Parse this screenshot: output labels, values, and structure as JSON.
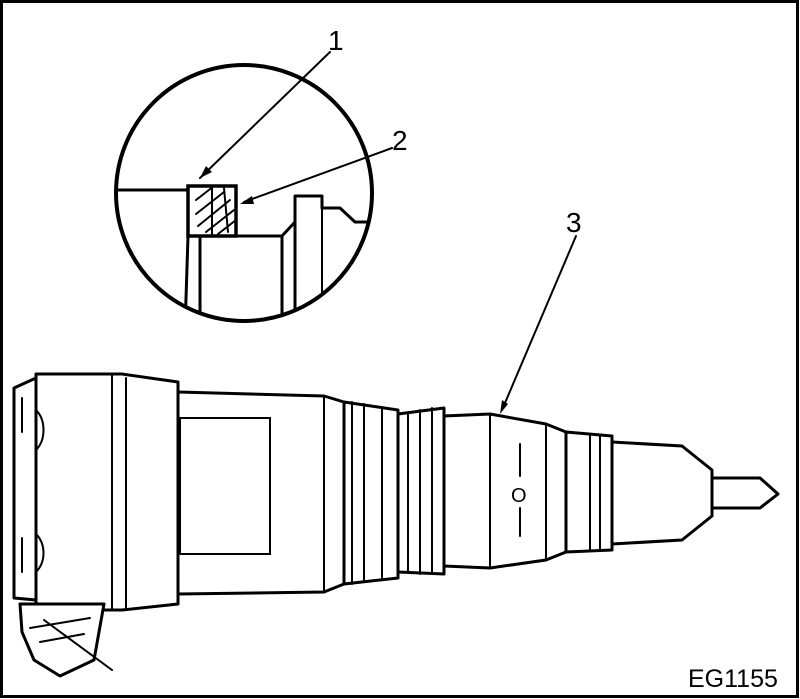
{
  "figure_code": "EG1155",
  "callouts": [
    {
      "number": "1"
    },
    {
      "number": "2"
    },
    {
      "number": "3"
    }
  ],
  "injector_mark": "O",
  "colors": {
    "ink": "#000000",
    "paper": "#ffffff"
  }
}
